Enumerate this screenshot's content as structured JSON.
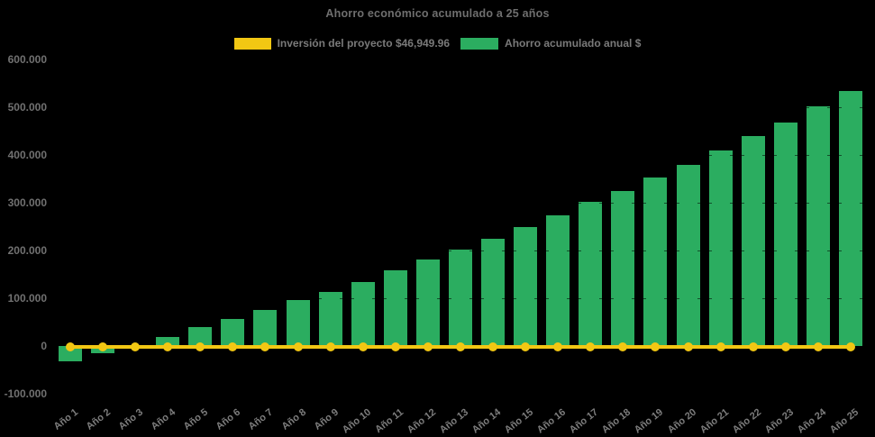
{
  "title": "Ahorro económico acumulado a 25 años",
  "colors": {
    "background": "#000000",
    "bar_green": "#2BAD60",
    "line_yellow": "#F2C713",
    "title_text": "#6F6F6F",
    "axis_text": "#717171",
    "xlabel_text": "#7D7D7D"
  },
  "legend": {
    "items": [
      {
        "label": "Inversión del proyecto $46,949.96",
        "color": "#F2C713"
      },
      {
        "label": "Ahorro acumulado anual $",
        "color": "#2BAD60"
      }
    ]
  },
  "chart_data": {
    "type": "bar",
    "title": "Ahorro económico acumulado a 25 años",
    "categories": [
      "Año 1",
      "Año 2",
      "Año 3",
      "Año 4",
      "Año 5",
      "Año 6",
      "Año 7",
      "Año 8",
      "Año 9",
      "Año 10",
      "Año 11",
      "Año 12",
      "Año 13",
      "Año 14",
      "Año 15",
      "Año 16",
      "Año 17",
      "Año 18",
      "Año 19",
      "Año 20",
      "Año 21",
      "Año 22",
      "Año 23",
      "Año 24",
      "Año 25"
    ],
    "series": [
      {
        "name": "Ahorro acumulado anual $",
        "type": "bar",
        "color": "#2BAD60",
        "values": [
          -33000,
          -16000,
          2000,
          19000,
          39000,
          57000,
          75000,
          96000,
          113000,
          134000,
          158000,
          181000,
          202000,
          225000,
          249000,
          274000,
          302000,
          325000,
          352000,
          380000,
          409000,
          440000,
          468000,
          502000,
          534000
        ]
      },
      {
        "name": "Inversión del proyecto $46,949.96",
        "type": "line",
        "color": "#F2C713",
        "constant_value_label": "$46,949.96",
        "plotted_level": 0,
        "values": [
          0,
          0,
          0,
          0,
          0,
          0,
          0,
          0,
          0,
          0,
          0,
          0,
          0,
          0,
          0,
          0,
          0,
          0,
          0,
          0,
          0,
          0,
          0,
          0,
          0
        ]
      }
    ],
    "xlabel": "",
    "ylabel": "",
    "ylim": [
      -100000,
      600000
    ],
    "ytick_step": 100000,
    "ytick_labels": [
      "600.000",
      "500.000",
      "400.000",
      "300.000",
      "200.000",
      "100.000",
      "0",
      "-100.000"
    ],
    "grid": false,
    "legend_position": "top"
  }
}
